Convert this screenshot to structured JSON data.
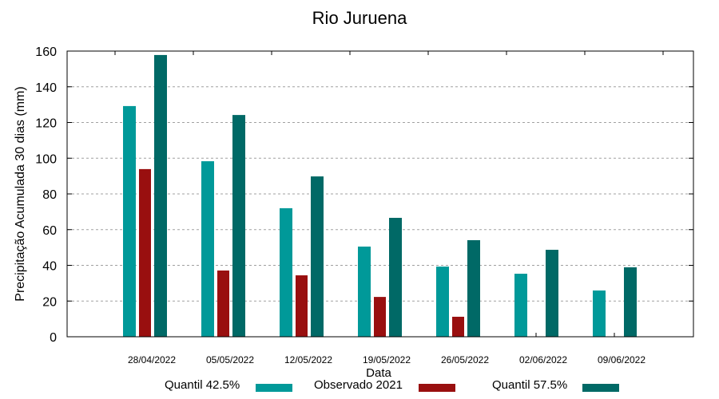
{
  "chart_data": {
    "type": "bar",
    "title": "Rio Juruena",
    "xlabel": "Data",
    "ylabel": "Precipitação Acumulada 30 dias (mm)",
    "ylim": [
      0,
      160
    ],
    "yticks": [
      0,
      20,
      40,
      60,
      80,
      100,
      120,
      140,
      160
    ],
    "grid": "horizontal dashed",
    "legend_position": "bottom",
    "categories": [
      "28/04/2022",
      "05/05/2022",
      "12/05/2022",
      "19/05/2022",
      "26/05/2022",
      "02/06/2022",
      "09/06/2022"
    ],
    "series": [
      {
        "name": "Quantil 42.5%",
        "color": "#009999",
        "values": [
          129.2,
          98.3,
          72.0,
          50.5,
          39.3,
          35.3,
          25.9
        ]
      },
      {
        "name": "Observado 2021",
        "color": "#990f0f",
        "values": [
          93.9,
          37.1,
          34.4,
          22.3,
          11.2,
          null,
          null
        ]
      },
      {
        "name": "Quantil 57.5%",
        "color": "#006966",
        "values": [
          157.8,
          124.2,
          89.8,
          66.6,
          54.1,
          48.7,
          38.9
        ]
      }
    ]
  }
}
